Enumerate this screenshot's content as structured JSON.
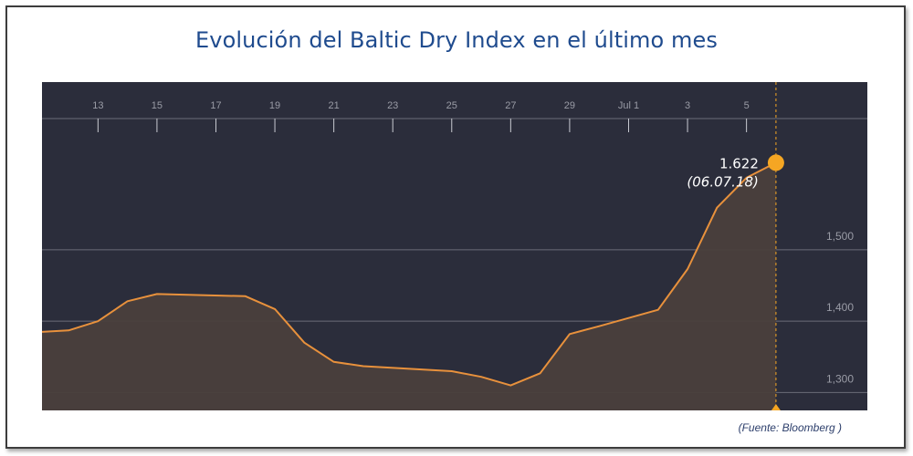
{
  "title": "Evolución del Baltic Dry Index en el último mes",
  "source": "(Fuente: Bloomberg )",
  "colors": {
    "background": "#2b2d3b",
    "line": "#e8913c",
    "area": "#4a3f3c",
    "marker": "#f5a623",
    "grid": "#6b6d78",
    "title": "#1f4b8e"
  },
  "chart_data": {
    "type": "area",
    "title": "Evolución del Baltic Dry Index en el último mes",
    "xlabel": "",
    "ylabel": "",
    "x_ticks": [
      {
        "label": "13",
        "day": 13
      },
      {
        "label": "15",
        "day": 15
      },
      {
        "label": "17",
        "day": 17
      },
      {
        "label": "19",
        "day": 19
      },
      {
        "label": "21",
        "day": 21
      },
      {
        "label": "23",
        "day": 23
      },
      {
        "label": "25",
        "day": 25
      },
      {
        "label": "27",
        "day": 27
      },
      {
        "label": "29",
        "day": 29
      },
      {
        "label": "Jul 1",
        "day": 31
      },
      {
        "label": "3",
        "day": 33
      },
      {
        "label": "5",
        "day": 35
      }
    ],
    "y_ticks": [
      {
        "label": "1,500",
        "value": 1500
      },
      {
        "label": "1,400",
        "value": 1400
      },
      {
        "label": "1,300",
        "value": 1300
      }
    ],
    "ylim": [
      1275,
      1735
    ],
    "xlim": [
      11.1,
      39.1
    ],
    "grid": true,
    "series": [
      {
        "points": [
          {
            "day": 11.1,
            "value": 1385
          },
          {
            "day": 12,
            "value": 1387
          },
          {
            "day": 13,
            "value": 1400
          },
          {
            "day": 14,
            "value": 1428
          },
          {
            "day": 15,
            "value": 1438
          },
          {
            "day": 18,
            "value": 1435
          },
          {
            "day": 19,
            "value": 1417
          },
          {
            "day": 20,
            "value": 1370
          },
          {
            "day": 21,
            "value": 1343
          },
          {
            "day": 22,
            "value": 1337
          },
          {
            "day": 25,
            "value": 1330
          },
          {
            "day": 26,
            "value": 1322
          },
          {
            "day": 27,
            "value": 1310
          },
          {
            "day": 28,
            "value": 1327
          },
          {
            "day": 29,
            "value": 1382
          },
          {
            "day": 30,
            "value": 1393
          },
          {
            "day": 32,
            "value": 1416
          },
          {
            "day": 33,
            "value": 1473
          },
          {
            "day": 34,
            "value": 1559
          },
          {
            "day": 35,
            "value": 1601
          },
          {
            "day": 36,
            "value": 1622
          }
        ]
      }
    ],
    "annotation": {
      "day": 36,
      "value": 1622,
      "value_label": "1.622",
      "date_label": "(06.07.18)"
    }
  }
}
